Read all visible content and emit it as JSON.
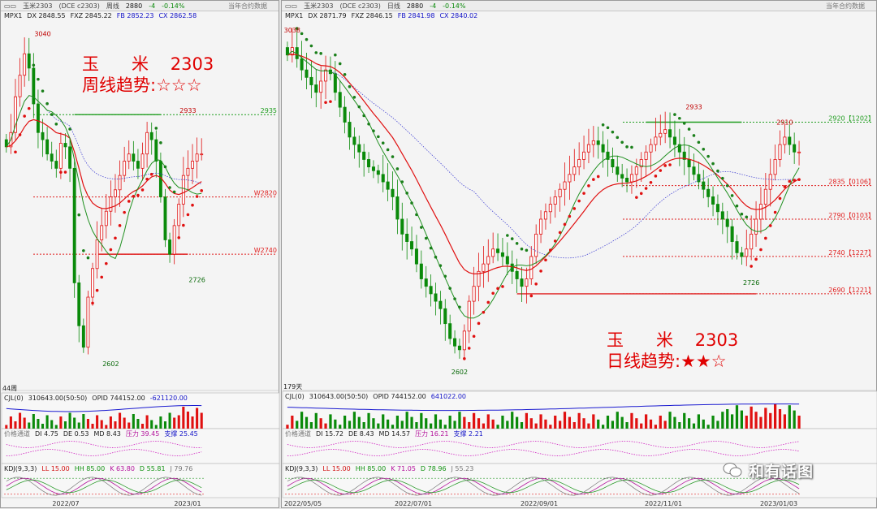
{
  "left_window": {
    "name": "玉米2303",
    "contract": "(DCE c2303)",
    "period": "周线",
    "price": "2880",
    "change": "-4",
    "change_pct": "-0.14%",
    "data_note": "当年合约数据",
    "indicator": "MPX1",
    "dx": "DX 2848.55",
    "fxz": "FXZ 2845.22",
    "fb": "FB 2852.23",
    "cx": "CX 2862.58",
    "bar_count": "44周",
    "cjl": "CJL(0)",
    "cjl_vals": "310643.00(50:50)",
    "opid": "OPID 744152.00",
    "cjl_diff": "-621120.00",
    "jgtd": "价格通道",
    "di": "DI 4.75",
    "de": "DE 0.53",
    "md": "MD 8.43",
    "yl": "压力 39.45",
    "zc": "支撑 25.45",
    "kdj": "KDJ(9,3,3)",
    "ll": "LL 15.00",
    "hh": "HH 85.00",
    "k": "K 63.80",
    "d": "D 55.81",
    "j": "J 79.76",
    "annotation_line1": "玉      米    2303",
    "annotation_line2": "周线趋势:☆☆☆"
  },
  "right_window": {
    "name": "玉米2303",
    "contract": "(DCE c2303)",
    "period": "日线",
    "price": "2880",
    "change": "-4",
    "change_pct": "-0.14%",
    "data_note": "当年合约数据",
    "indicator": "MPX1",
    "dx": "DX 2871.79",
    "fxz": "FXZ 2846.15",
    "fb": "FB 2841.98",
    "cx": "CX 2840.02",
    "bar_count": "179天",
    "cjl": "CJL(0)",
    "cjl_vals": "310643.00(50:50)",
    "opid": "OPID 744152.00",
    "cjl_diff": "641022.00",
    "jgtd": "价格通道",
    "di": "DI 15.72",
    "de": "DE 8.43",
    "md": "MD 14.57",
    "yl": "压力 16.21",
    "zc": "支撑 2.21",
    "kdj": "KDJ(9,3,3)",
    "ll": "LL 15.00",
    "hh": "HH 85.00",
    "k": "K 71.05",
    "d": "D 78.96",
    "j": "J 55.23",
    "annotation_line1": "玉      米    2303",
    "annotation_line2": "日线趋势:★★☆"
  },
  "watermark": "和有话图",
  "chart_data": [
    {
      "type": "candlestick",
      "period": "weekly",
      "ylim": [
        2570,
        3060
      ],
      "x_ticks": [
        "2022/07",
        "2023/01"
      ],
      "high_label": "3040",
      "low_label": "2602",
      "recent_high_label": "2933",
      "recent_low_label": "2726",
      "levels": [
        {
          "label": "2935",
          "value": 2935,
          "color": "#1f9d1f"
        },
        {
          "label": "W2820",
          "value": 2820,
          "color": "#e02020"
        },
        {
          "label": "W2740",
          "value": 2740,
          "color": "#e02020"
        }
      ],
      "close": [
        2890,
        2910,
        2960,
        2990,
        3020,
        3000,
        2950,
        2910,
        2900,
        2880,
        2870,
        2860,
        2895,
        2890,
        2860,
        2700,
        2640,
        2610,
        2680,
        2720,
        2760,
        2780,
        2800,
        2820,
        2830,
        2850,
        2870,
        2880,
        2870,
        2860,
        2880,
        2910,
        2900,
        2870,
        2820,
        2760,
        2740,
        2780,
        2810,
        2850,
        2860,
        2870,
        2880,
        2880
      ],
      "colors": {
        "up": "#e01010",
        "down": "#0a8a0a",
        "ma_red": "#e01010",
        "ma_green": "#1f8f1f",
        "ma_blue": "#3030d0"
      }
    },
    {
      "type": "candlestick",
      "period": "daily",
      "ylim": [
        2580,
        3050
      ],
      "x_ticks": [
        "2022/05/05",
        "2022/07/01",
        "2022/09/01",
        "2022/11/01",
        "2023/01/03"
      ],
      "high_label": "3038",
      "low_label": "2602",
      "recent_high_label": "2933",
      "peak_label": "2910",
      "recent_low_label": "2726",
      "levels": [
        {
          "label": "2920【1202】",
          "value": 2920,
          "color": "#1f9d1f"
        },
        {
          "label": "2835【0106】",
          "value": 2835,
          "color": "#e02020"
        },
        {
          "label": "2790【0103】",
          "value": 2790,
          "color": "#e02020"
        },
        {
          "label": "2740【1227】",
          "value": 2740,
          "color": "#e02020"
        },
        {
          "label": "2690【1221】",
          "value": 2690,
          "color": "#e02020"
        }
      ],
      "close": [
        3010,
        3020,
        3005,
        2990,
        2980,
        2970,
        2960,
        2975,
        2990,
        2985,
        2960,
        2940,
        2920,
        2900,
        2890,
        2880,
        2870,
        2860,
        2855,
        2850,
        2840,
        2830,
        2820,
        2790,
        2770,
        2760,
        2750,
        2730,
        2710,
        2700,
        2690,
        2680,
        2670,
        2650,
        2630,
        2620,
        2615,
        2640,
        2680,
        2700,
        2720,
        2730,
        2740,
        2750,
        2745,
        2740,
        2730,
        2720,
        2710,
        2700,
        2710,
        2740,
        2770,
        2790,
        2800,
        2810,
        2820,
        2830,
        2840,
        2850,
        2860,
        2870,
        2880,
        2890,
        2895,
        2890,
        2880,
        2870,
        2860,
        2850,
        2845,
        2840,
        2850,
        2860,
        2870,
        2880,
        2890,
        2900,
        2905,
        2910,
        2900,
        2890,
        2880,
        2870,
        2860,
        2850,
        2840,
        2830,
        2820,
        2810,
        2800,
        2790,
        2780,
        2760,
        2745,
        2740,
        2750,
        2770,
        2790,
        2810,
        2830,
        2850,
        2870,
        2890,
        2900,
        2890,
        2880,
        2880
      ],
      "colors": {
        "up": "#e01010",
        "down": "#0a8a0a",
        "ma_red": "#e01010",
        "ma_green": "#1f8f1f",
        "ma_blue": "#3030d0"
      }
    }
  ]
}
